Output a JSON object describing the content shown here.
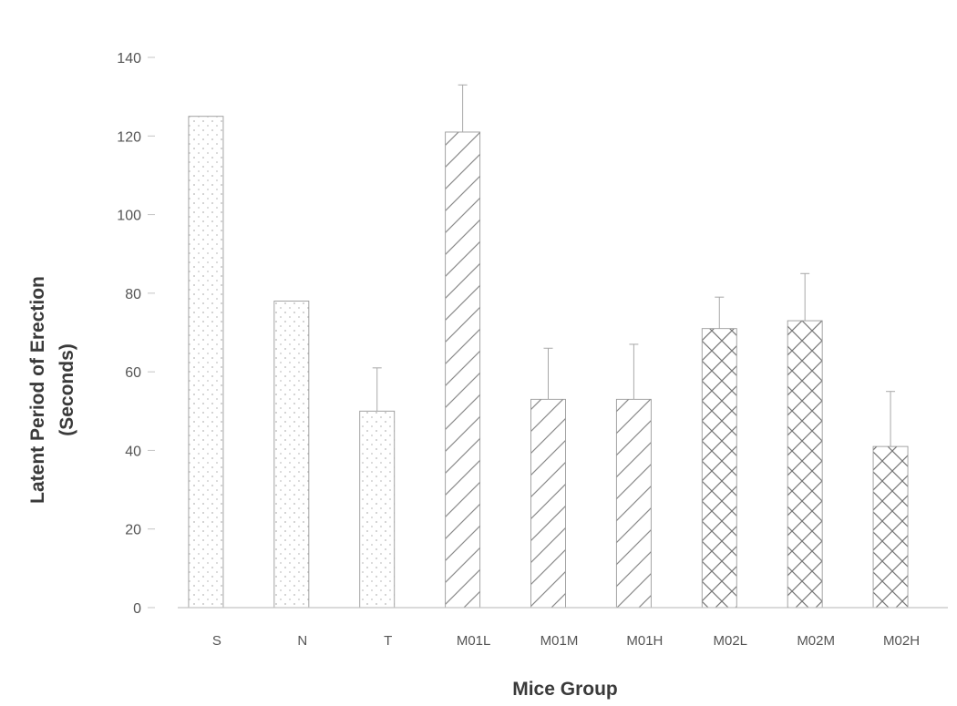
{
  "chart_data": {
    "type": "bar",
    "title": "",
    "xlabel": "Mice Group",
    "ylabel": "Latent Period of Erection",
    "ylabel_unit": "(Seconds)",
    "categories": [
      "S",
      "N",
      "T",
      "M01L",
      "M01M",
      "M01H",
      "M02L",
      "M02M",
      "M02H"
    ],
    "values": [
      125,
      78,
      50,
      121,
      53,
      53,
      71,
      73,
      41
    ],
    "errors": [
      0,
      0,
      11,
      12,
      13,
      14,
      8,
      12,
      14
    ],
    "ylim": [
      0,
      140
    ],
    "yticks": [
      0,
      20,
      40,
      60,
      80,
      100,
      120,
      140
    ],
    "ytick_labels": [
      "0",
      "20",
      "40",
      "60",
      "80",
      "100",
      "120",
      "140"
    ],
    "patterns": [
      "dots",
      "dots",
      "dots",
      "diagonal",
      "diagonal",
      "diagonal",
      "crosshatch",
      "crosshatch",
      "crosshatch"
    ],
    "colors": {
      "bar_stroke": "#9a9a9a",
      "pattern": "#777777",
      "axis": "#c4c4c4",
      "text": "#555555"
    },
    "grid": false,
    "legend": "none"
  }
}
